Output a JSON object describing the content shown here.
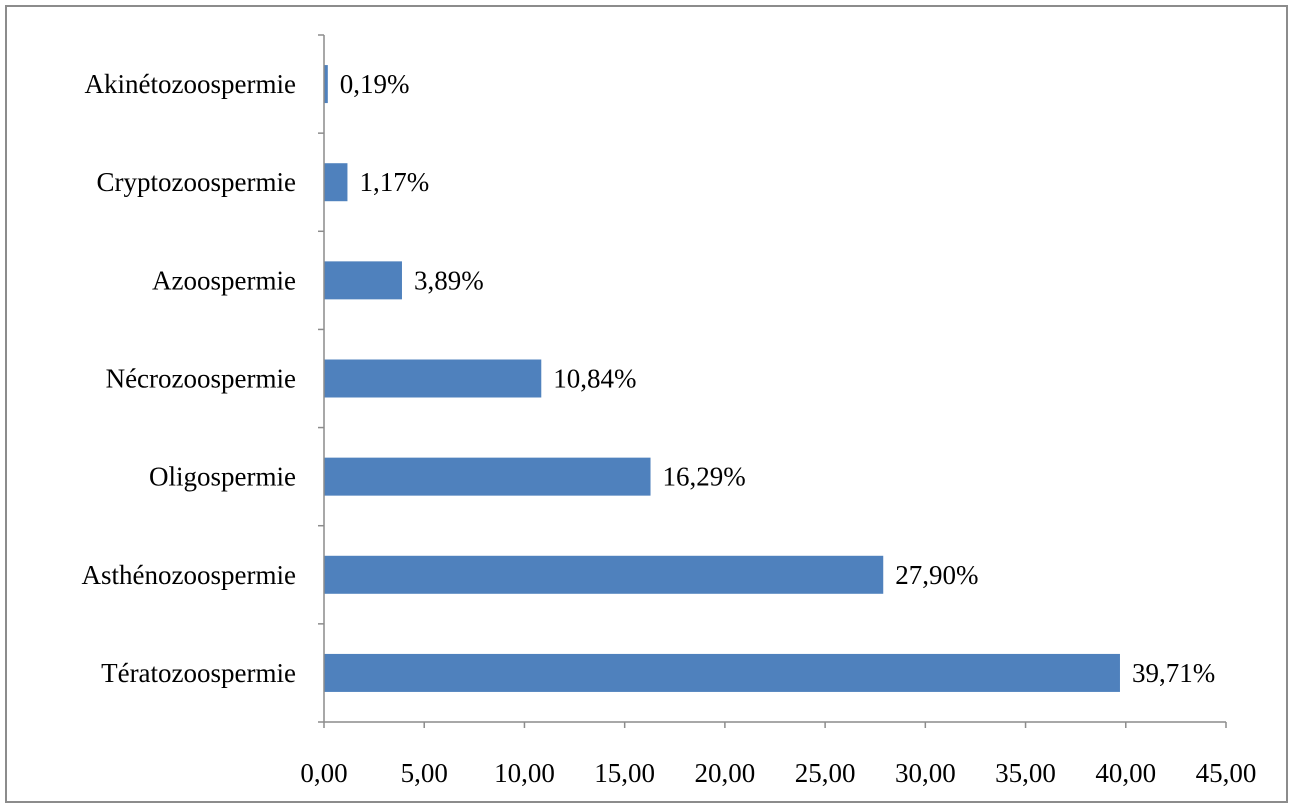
{
  "chart_data": {
    "type": "bar",
    "orientation": "horizontal",
    "title": "",
    "xlabel": "",
    "ylabel": "",
    "categories": [
      "Akinétozoospermie",
      "Cryptozoospermie",
      "Azoospermie",
      "Nécrozoospermie",
      "Oligospermie",
      "Asthénozoospermie",
      "Tératozoospermie"
    ],
    "values": [
      0.19,
      1.17,
      3.89,
      10.84,
      16.29,
      27.9,
      39.71
    ],
    "value_labels": [
      "0,19%",
      "1,17%",
      "3,89%",
      "10,84%",
      "16,29%",
      "27,90%",
      "39,71%"
    ],
    "xlim": [
      0,
      45
    ],
    "x_ticks": [
      0,
      5,
      10,
      15,
      20,
      25,
      30,
      35,
      40,
      45
    ],
    "x_tick_labels": [
      "0,00",
      "5,00",
      "10,00",
      "15,00",
      "20,00",
      "25,00",
      "30,00",
      "35,00",
      "40,00",
      "45,00"
    ],
    "grid": false,
    "legend": "none",
    "bar_color": "#4f81bd"
  }
}
